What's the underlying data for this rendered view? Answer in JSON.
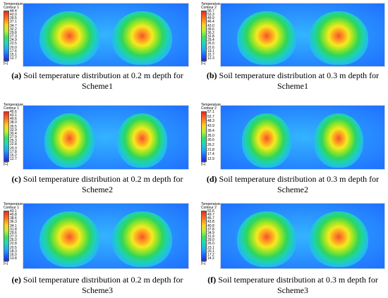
{
  "panels": [
    {
      "legend_title": "Temperature",
      "legend_sub": "Contour 1",
      "ticks": [
        "44.4",
        "42.0",
        "39.5",
        "37.1",
        "34.7",
        "32.2",
        "29.8",
        "27.3",
        "24.9",
        "22.5",
        "20.0",
        "17.6",
        "15.1",
        "12.7"
      ],
      "unit": "[C]",
      "caption_label": "(a)",
      "caption_line1": " Soil temperature distribution at 0.2 m depth for",
      "caption_line2": "Scheme1"
    },
    {
      "legend_title": "Temperature",
      "legend_sub": "Contour 2",
      "ticks": [
        "56.7",
        "53.3",
        "49.9",
        "46.4",
        "43.0",
        "39.6",
        "36.2",
        "32.8",
        "29.4",
        "26.0",
        "22.6",
        "19.1",
        "15.7",
        "12.3"
      ],
      "unit": "[C]",
      "caption_label": "(b)",
      "caption_line1": " Soil temperature distribution at 0.3 m depth for",
      "caption_line2": "Scheme1"
    },
    {
      "legend_title": "Temperature",
      "legend_sub": "Contour 1",
      "ticks": [
        "45.6",
        "43.1",
        "40.6",
        "38.0",
        "35.5",
        "32.9",
        "30.4",
        "27.9",
        "25.3",
        "22.8",
        "20.3",
        "17.8",
        "15.2",
        "12.7"
      ],
      "unit": "[C]",
      "caption_label": "(c)",
      "caption_line1": " Soil temperature distribution at 0.2 m depth for",
      "caption_line2": "Scheme2"
    },
    {
      "legend_title": "Temperature",
      "legend_sub": "Contour 2",
      "ticks": [
        "57.1",
        "52.7",
        "48.3",
        "43.9",
        "39.4",
        "35.0",
        "30.6",
        "26.2",
        "21.8",
        "17.4",
        "12.9"
      ],
      "unit": "[C]",
      "caption_label": "(d)",
      "caption_line1": " Soil temperature distribution at 0.3 m depth for",
      "caption_line2": "Scheme2"
    },
    {
      "legend_title": "Temperature",
      "legend_sub": "Contour 1",
      "ticks": [
        "43.1",
        "40.8",
        "38.6",
        "36.3",
        "34.1",
        "31.8",
        "29.6",
        "27.3",
        "25.0",
        "22.8",
        "20.5",
        "18.3",
        "16.0",
        "13.8"
      ],
      "unit": "[C]",
      "caption_label": "(e)",
      "caption_line1": " Soil temperature distribution at 0.2 m depth for",
      "caption_line2": "Scheme3"
    },
    {
      "legend_title": "Temperature",
      "legend_sub": "Contour 2",
      "ticks": [
        "52.6",
        "49.7",
        "46.7",
        "43.8",
        "40.8",
        "37.8",
        "34.9",
        "31.9",
        "29.0",
        "26.0",
        "23.1",
        "20.1",
        "17.2",
        "14.2"
      ],
      "unit": "[C]",
      "caption_label": "(f)",
      "caption_line1": " Soil temperature distribution at 0.3 m depth for",
      "caption_line2": "Scheme3"
    }
  ]
}
